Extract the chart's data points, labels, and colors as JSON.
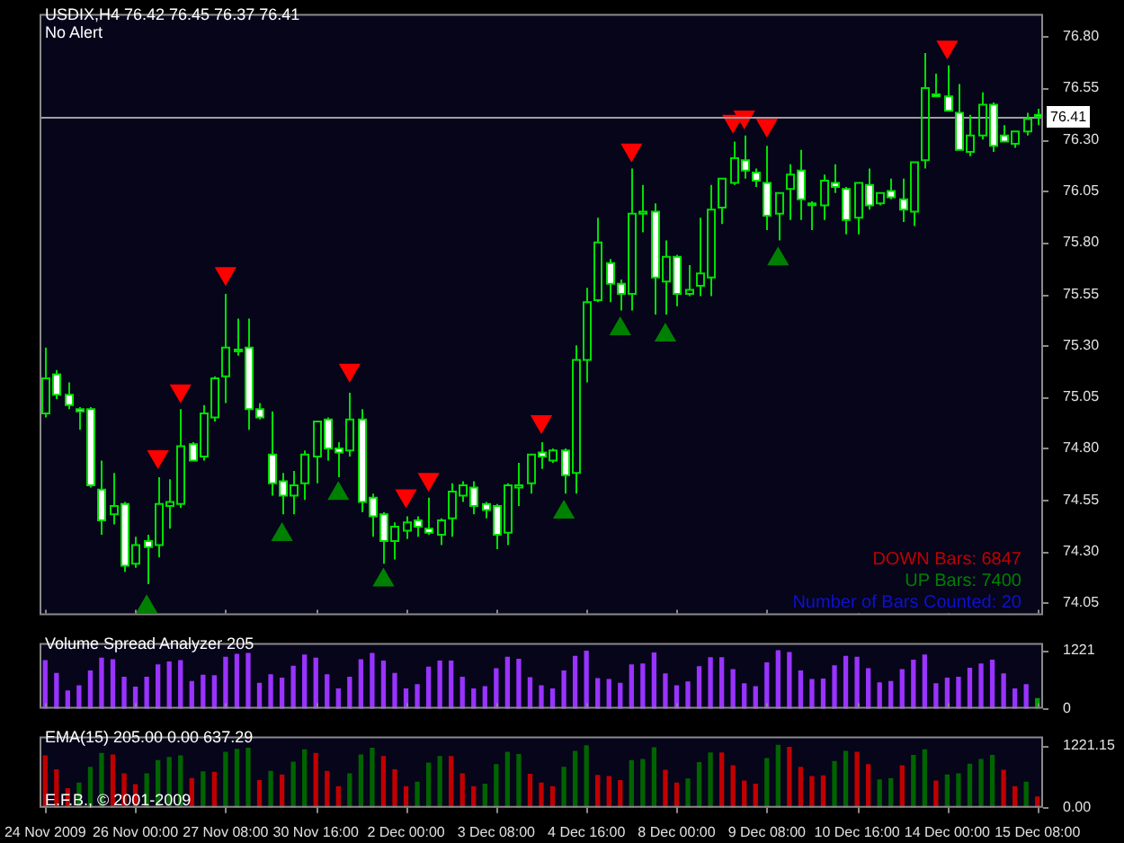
{
  "chart_data": [
    {
      "type": "candlestick",
      "title": "USDIX,H4  76.42 76.45 76.37 76.41",
      "subtitle": "No Alert",
      "color": "#00e000",
      "colors": [
        "#00e000",
        "#ffffff",
        "#ffffff",
        "#ffffff",
        "#ffffff",
        "#ffffff",
        "#00e000",
        "#ffffff",
        "#00e000",
        "#ffffff",
        "#00e000",
        "#00e000",
        "#00e000",
        "#ffffff",
        "#00e000",
        "#00e000",
        "#00e000",
        "#00e000",
        "#ffffff",
        "#ffffff",
        "#ffffff",
        "#ffffff",
        "#00e000",
        "#00e000",
        "#00e000",
        "#ffffff",
        "#ffffff",
        "#00e000",
        "#ffffff",
        "#ffffff",
        "#ffffff",
        "#00e000",
        "#00e000",
        "#ffffff",
        "#ffffff",
        "#00e000",
        "#00e000",
        "#00e000",
        "#ffffff",
        "#ffffff",
        "#ffffff",
        "#00e000",
        "#00e000",
        "#00e000",
        "#ffffff",
        "#00e000",
        "#ffffff",
        "#00e000",
        "#00e000",
        "#00e000",
        "#ffffff",
        "#ffffff",
        "#00e000",
        "#00e000",
        "#ffffff",
        "#00e000",
        "#ffffff",
        "#00e000",
        "#00e000",
        "#00e000",
        "#00e000",
        "#00e000",
        "#ffffff",
        "#ffffff",
        "#ffffff",
        "#00e000",
        "#00e000",
        "#ffffff",
        "#00e000",
        "#00e000",
        "#ffffff",
        "#ffffff",
        "#00e000",
        "#ffffff",
        "#00e000",
        "#ffffff",
        "#ffffff",
        "#00e000",
        "#00e000",
        "#ffffff",
        "#ffffff",
        "#ffffff",
        "#00e000",
        "#00e000",
        "#ffffff",
        "#ffffff",
        "#00e000",
        "#00e000",
        "#ffffff"
      ],
      "ohlc": [
        [
          74.97,
          75.29,
          74.95,
          75.14
        ],
        [
          75.16,
          75.18,
          75.04,
          75.06
        ],
        [
          75.06,
          75.12,
          74.99,
          75.01
        ],
        [
          74.99,
          75.0,
          74.89,
          74.98
        ],
        [
          74.99,
          75.0,
          74.61,
          74.62
        ],
        [
          74.6,
          74.74,
          74.38,
          74.45
        ],
        [
          74.48,
          74.68,
          74.43,
          74.52
        ],
        [
          74.53,
          74.54,
          74.2,
          74.23
        ],
        [
          74.24,
          74.37,
          74.22,
          74.33
        ],
        [
          74.35,
          74.38,
          74.14,
          74.32
        ],
        [
          74.33,
          74.66,
          74.27,
          74.53
        ],
        [
          74.52,
          74.65,
          74.41,
          74.54
        ],
        [
          74.53,
          74.99,
          74.51,
          74.81
        ],
        [
          74.82,
          74.83,
          74.74,
          74.74
        ],
        [
          74.76,
          75.01,
          74.74,
          74.97
        ],
        [
          74.95,
          75.15,
          74.93,
          75.14
        ],
        [
          75.15,
          75.55,
          75.02,
          75.29
        ],
        [
          75.28,
          75.43,
          75.25,
          75.28
        ],
        [
          75.29,
          75.43,
          74.89,
          74.99
        ],
        [
          74.99,
          75.02,
          74.94,
          74.95
        ],
        [
          74.77,
          74.98,
          74.57,
          74.63
        ],
        [
          74.64,
          74.68,
          74.48,
          74.57
        ],
        [
          74.57,
          74.69,
          74.48,
          74.62
        ],
        [
          74.63,
          74.79,
          74.55,
          74.77
        ],
        [
          74.76,
          74.93,
          74.63,
          74.93
        ],
        [
          74.94,
          74.95,
          74.74,
          74.8
        ],
        [
          74.8,
          74.83,
          74.66,
          74.78
        ],
        [
          74.79,
          75.07,
          74.76,
          74.94
        ],
        [
          74.94,
          74.99,
          74.49,
          74.54
        ],
        [
          74.56,
          74.58,
          74.37,
          74.47
        ],
        [
          74.48,
          74.49,
          74.24,
          74.35
        ],
        [
          74.35,
          74.44,
          74.26,
          74.42
        ],
        [
          74.4,
          74.47,
          74.36,
          74.44
        ],
        [
          74.45,
          74.47,
          74.37,
          74.42
        ],
        [
          74.41,
          74.56,
          74.38,
          74.39
        ],
        [
          74.38,
          74.46,
          74.33,
          74.45
        ],
        [
          74.46,
          74.63,
          74.37,
          74.59
        ],
        [
          74.57,
          74.64,
          74.54,
          74.62
        ],
        [
          74.61,
          74.64,
          74.48,
          74.52
        ],
        [
          74.53,
          74.54,
          74.46,
          74.5
        ],
        [
          74.52,
          74.53,
          74.31,
          74.38
        ],
        [
          74.39,
          74.63,
          74.33,
          74.62
        ],
        [
          74.61,
          74.73,
          74.52,
          74.62
        ],
        [
          74.63,
          74.77,
          74.58,
          74.77
        ],
        [
          74.78,
          74.83,
          74.7,
          74.76
        ],
        [
          74.74,
          74.8,
          74.73,
          74.79
        ],
        [
          74.79,
          74.8,
          74.58,
          74.67
        ],
        [
          74.68,
          75.3,
          74.58,
          75.23
        ],
        [
          75.23,
          75.58,
          75.12,
          75.51
        ],
        [
          75.52,
          75.92,
          75.51,
          75.8
        ],
        [
          75.7,
          75.72,
          75.51,
          75.6
        ],
        [
          75.6,
          75.62,
          75.47,
          75.55
        ],
        [
          75.55,
          76.16,
          75.47,
          75.94
        ],
        [
          75.94,
          76.08,
          75.85,
          75.95
        ],
        [
          75.95,
          75.99,
          75.45,
          75.63
        ],
        [
          75.61,
          75.81,
          75.45,
          75.73
        ],
        [
          75.73,
          75.74,
          75.49,
          75.55
        ],
        [
          75.55,
          75.69,
          75.54,
          75.57
        ],
        [
          75.59,
          75.92,
          75.54,
          75.65
        ],
        [
          75.63,
          76.08,
          75.54,
          75.96
        ],
        [
          75.97,
          76.11,
          75.89,
          76.11
        ],
        [
          76.09,
          76.29,
          76.08,
          76.21
        ],
        [
          76.2,
          76.32,
          76.11,
          76.15
        ],
        [
          76.14,
          76.16,
          76.07,
          76.1
        ],
        [
          76.09,
          76.27,
          75.86,
          75.93
        ],
        [
          75.94,
          76.04,
          75.81,
          76.04
        ],
        [
          76.06,
          76.18,
          75.91,
          76.13
        ],
        [
          76.15,
          76.25,
          75.91,
          76.01
        ],
        [
          75.99,
          76.0,
          75.86,
          75.99
        ],
        [
          75.98,
          76.13,
          75.91,
          76.1
        ],
        [
          76.09,
          76.18,
          76.04,
          76.07
        ],
        [
          76.06,
          76.07,
          75.84,
          75.91
        ],
        [
          75.92,
          76.09,
          75.84,
          76.09
        ],
        [
          76.08,
          76.16,
          75.96,
          75.98
        ],
        [
          75.99,
          76.04,
          75.98,
          76.04
        ],
        [
          76.05,
          76.11,
          76.01,
          76.02
        ],
        [
          76.01,
          76.11,
          75.9,
          75.96
        ],
        [
          75.95,
          76.19,
          75.88,
          76.19
        ],
        [
          76.2,
          76.72,
          76.16,
          76.55
        ],
        [
          76.52,
          76.62,
          76.51,
          76.51
        ],
        [
          76.51,
          76.66,
          76.44,
          76.44
        ],
        [
          76.43,
          76.57,
          76.25,
          76.25
        ],
        [
          76.24,
          76.42,
          76.22,
          76.32
        ],
        [
          76.32,
          76.53,
          76.3,
          76.47
        ],
        [
          76.47,
          76.48,
          76.24,
          76.27
        ],
        [
          76.32,
          76.37,
          76.29,
          76.29
        ],
        [
          76.28,
          76.34,
          76.26,
          76.34
        ],
        [
          76.34,
          76.43,
          76.32,
          76.4
        ],
        [
          76.42,
          76.45,
          76.37,
          76.41
        ]
      ],
      "series": [
        {
          "type": "scatter",
          "color": "#ff0000",
          "values": [
            null,
            null,
            null,
            null,
            null,
            null,
            null,
            null,
            null,
            null,
            74.76,
            null,
            75.08,
            null,
            null,
            null,
            75.65,
            null,
            null,
            null,
            null,
            null,
            null,
            null,
            null,
            null,
            null,
            75.18,
            null,
            null,
            null,
            null,
            74.57,
            null,
            74.65,
            null,
            null,
            null,
            null,
            null,
            null,
            null,
            null,
            null,
            74.93,
            null,
            null,
            null,
            null,
            null,
            null,
            null,
            76.25,
            null,
            null,
            null,
            null,
            null,
            null,
            null,
            null,
            76.39,
            76.41,
            null,
            76.37,
            null,
            null,
            null,
            null,
            null,
            null,
            null,
            null,
            null,
            null,
            null,
            null,
            null,
            null,
            null,
            76.75,
            null,
            null,
            null,
            null,
            null,
            null,
            null,
            null
          ]
        },
        {
          "type": "scatter",
          "color": "#008000",
          "values": [
            null,
            null,
            null,
            null,
            null,
            null,
            null,
            null,
            null,
            74.03,
            null,
            null,
            null,
            null,
            null,
            null,
            null,
            null,
            null,
            null,
            null,
            74.38,
            null,
            null,
            null,
            null,
            74.58,
            null,
            null,
            null,
            74.16,
            null,
            null,
            null,
            null,
            null,
            null,
            null,
            null,
            null,
            null,
            null,
            null,
            null,
            null,
            null,
            74.49,
            null,
            null,
            null,
            null,
            75.38,
            null,
            null,
            null,
            75.35,
            null,
            null,
            null,
            null,
            null,
            null,
            null,
            null,
            null,
            75.72,
            null,
            null,
            null,
            null,
            null,
            null,
            null,
            null,
            null,
            null,
            null,
            null,
            null,
            null,
            null,
            null,
            null,
            null,
            null,
            null,
            null,
            null,
            null
          ]
        }
      ],
      "marker": "triangle",
      "ylim": [
        73.99,
        76.91
      ],
      "yticks": [
        74.05,
        {
          "value": 74.3,
          "label": "74.30"
        },
        74.55,
        {
          "value": 74.8,
          "label": "74.80"
        },
        75.05,
        {
          "value": 75.3,
          "label": "75.30"
        },
        75.55,
        {
          "value": 75.8,
          "label": "75.80"
        },
        76.05,
        {
          "value": 76.3,
          "label": "76.30"
        },
        76.55,
        {
          "value": 76.8,
          "label": "76.80"
        }
      ],
      "ref_lines": [
        {
          "axis": "y",
          "value": 76.41,
          "label": "76.41",
          "color": "#a0a0a0"
        }
      ],
      "annotations": [
        "DOWN Bars: 6847",
        "UP Bars: 7400",
        "Number of Bars Counted: 20"
      ],
      "tick_labels": "y"
    },
    {
      "type": "bar",
      "title": "Volume Spread Analyzer 205",
      "values": [
        1010,
        740,
        370,
        480,
        790,
        1060,
        1030,
        660,
        450,
        660,
        920,
        980,
        1010,
        570,
        700,
        690,
        1080,
        1140,
        1160,
        530,
        710,
        640,
        890,
        1130,
        1060,
        710,
        410,
        660,
        1030,
        1160,
        1000,
        740,
        410,
        500,
        870,
        1000,
        1000,
        660,
        410,
        460,
        840,
        1080,
        1040,
        650,
        480,
        410,
        790,
        1100,
        1210,
        630,
        610,
        530,
        920,
        940,
        1170,
        730,
        480,
        560,
        880,
        1070,
        1070,
        820,
        520,
        460,
        960,
        1220,
        1180,
        790,
        610,
        620,
        900,
        1100,
        1080,
        840,
        540,
        570,
        820,
        1020,
        1130,
        520,
        640,
        660,
        850,
        940,
        1020,
        730,
        410,
        500,
        210
      ],
      "colors": [
        "#9933ff",
        "#9933ff",
        "#9933ff",
        "#9933ff",
        "#9933ff",
        "#9933ff",
        "#9933ff",
        "#9933ff",
        "#9933ff",
        "#9933ff",
        "#9933ff",
        "#9933ff",
        "#9933ff",
        "#9933ff",
        "#9933ff",
        "#9933ff",
        "#9933ff",
        "#9933ff",
        "#9933ff",
        "#9933ff",
        "#9933ff",
        "#9933ff",
        "#9933ff",
        "#9933ff",
        "#9933ff",
        "#9933ff",
        "#9933ff",
        "#9933ff",
        "#9933ff",
        "#9933ff",
        "#9933ff",
        "#9933ff",
        "#9933ff",
        "#9933ff",
        "#9933ff",
        "#9933ff",
        "#9933ff",
        "#9933ff",
        "#9933ff",
        "#9933ff",
        "#9933ff",
        "#9933ff",
        "#9933ff",
        "#9933ff",
        "#9933ff",
        "#9933ff",
        "#9933ff",
        "#9933ff",
        "#9933ff",
        "#9933ff",
        "#9933ff",
        "#9933ff",
        "#9933ff",
        "#9933ff",
        "#9933ff",
        "#9933ff",
        "#9933ff",
        "#9933ff",
        "#9933ff",
        "#9933ff",
        "#9933ff",
        "#9933ff",
        "#9933ff",
        "#9933ff",
        "#9933ff",
        "#9933ff",
        "#9933ff",
        "#9933ff",
        "#9933ff",
        "#9933ff",
        "#9933ff",
        "#9933ff",
        "#9933ff",
        "#9933ff",
        "#9933ff",
        "#9933ff",
        "#9933ff",
        "#9933ff",
        "#9933ff",
        "#9933ff",
        "#9933ff",
        "#9933ff",
        "#9933ff",
        "#9933ff",
        "#9933ff",
        "#9933ff",
        "#9933ff",
        "#9933ff",
        "#00a000"
      ],
      "ylim": [
        0,
        1380
      ],
      "yticks": [
        0,
        1221
      ],
      "tick_labels": "y"
    },
    {
      "type": "bar",
      "title": "EMA(15) 205.00 0.00 637.29",
      "categories": [
        "24 Nov 2009",
        null,
        null,
        null,
        null,
        null,
        null,
        null,
        "26 Nov 00:00",
        null,
        null,
        null,
        null,
        null,
        null,
        null,
        "27 Nov 08:00",
        null,
        null,
        null,
        null,
        null,
        null,
        null,
        "30 Nov 16:00",
        null,
        null,
        null,
        null,
        null,
        null,
        null,
        "2 Dec 00:00",
        null,
        null,
        null,
        null,
        null,
        null,
        null,
        "3 Dec 08:00",
        null,
        null,
        null,
        null,
        null,
        null,
        null,
        "4 Dec 16:00",
        null,
        null,
        null,
        null,
        null,
        null,
        null,
        "8 Dec 00:00",
        null,
        null,
        null,
        null,
        null,
        null,
        null,
        "9 Dec 08:00",
        null,
        null,
        null,
        null,
        null,
        null,
        null,
        "10 Dec 16:00",
        null,
        null,
        null,
        null,
        null,
        null,
        null,
        "14 Dec 00:00",
        null,
        null,
        null,
        null,
        null,
        null,
        null,
        "15 Dec 08:00"
      ],
      "values": [
        1010,
        740,
        370,
        480,
        790,
        1060,
        1030,
        660,
        450,
        660,
        920,
        980,
        1010,
        570,
        700,
        690,
        1080,
        1140,
        1160,
        530,
        710,
        640,
        890,
        1130,
        1060,
        710,
        410,
        660,
        1030,
        1160,
        1000,
        740,
        410,
        500,
        870,
        1000,
        1000,
        660,
        410,
        460,
        840,
        1080,
        1040,
        650,
        480,
        410,
        790,
        1100,
        1210,
        630,
        610,
        530,
        920,
        940,
        1170,
        730,
        480,
        560,
        880,
        1070,
        1070,
        820,
        520,
        460,
        960,
        1220,
        1180,
        790,
        610,
        620,
        900,
        1100,
        1080,
        840,
        540,
        570,
        820,
        1020,
        1130,
        520,
        640,
        660,
        850,
        940,
        1020,
        730,
        410,
        500,
        210
      ],
      "colors": [
        "#c00000",
        "#c00000",
        "#c00000",
        "#006400",
        "#006400",
        "#006400",
        "#c00000",
        "#c00000",
        "#c00000",
        "#006400",
        "#006400",
        "#006400",
        "#006400",
        "#c00000",
        "#006400",
        "#c00000",
        "#006400",
        "#006400",
        "#006400",
        "#c00000",
        "#006400",
        "#c00000",
        "#006400",
        "#006400",
        "#c00000",
        "#c00000",
        "#c00000",
        "#006400",
        "#006400",
        "#006400",
        "#c00000",
        "#c00000",
        "#c00000",
        "#006400",
        "#006400",
        "#006400",
        "#c00000",
        "#c00000",
        "#c00000",
        "#006400",
        "#006400",
        "#006400",
        "#006400",
        "#c00000",
        "#c00000",
        "#c00000",
        "#006400",
        "#006400",
        "#006400",
        "#c00000",
        "#c00000",
        "#c00000",
        "#006400",
        "#006400",
        "#006400",
        "#c00000",
        "#c00000",
        "#006400",
        "#006400",
        "#006400",
        "#c00000",
        "#c00000",
        "#c00000",
        "#c00000",
        "#006400",
        "#006400",
        "#c00000",
        "#c00000",
        "#c00000",
        "#c00000",
        "#006400",
        "#006400",
        "#c00000",
        "#c00000",
        "#006400",
        "#006400",
        "#c00000",
        "#006400",
        "#006400",
        "#c00000",
        "#006400",
        "#006400",
        "#006400",
        "#006400",
        "#006400",
        "#c00000",
        "#c00000",
        "#006400",
        "#c00000"
      ],
      "ylim": [
        0,
        1390
      ],
      "yticks": [
        {
          "value": 1221.15,
          "label": "1221.15"
        },
        {
          "value": 0,
          "label": "0.00"
        }
      ],
      "annotations": [
        "E.F.B., © 2001-2009"
      ]
    }
  ]
}
